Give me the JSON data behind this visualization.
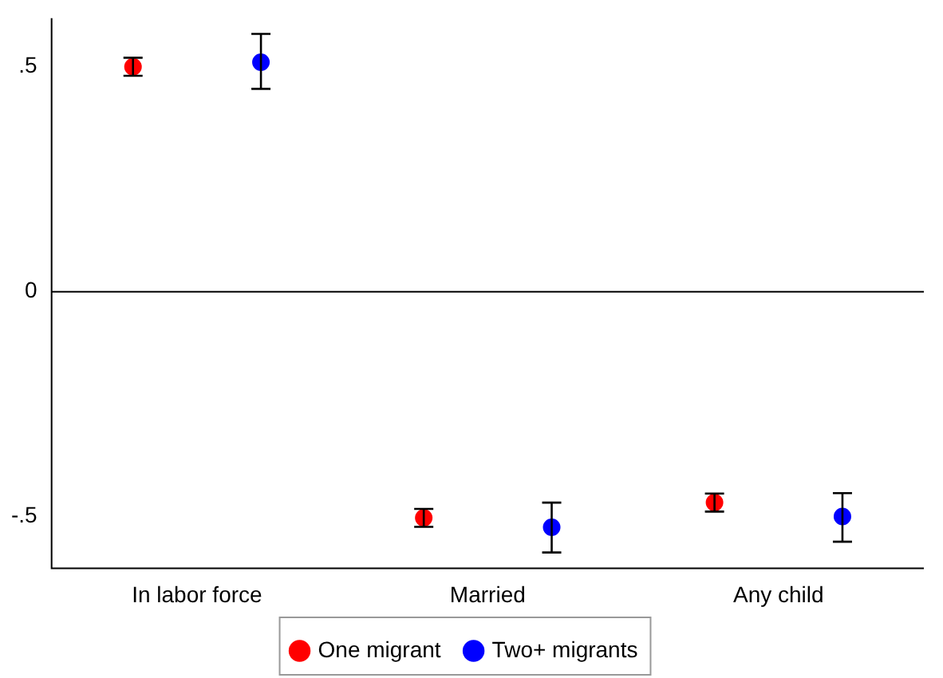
{
  "chart_data": {
    "type": "scatter",
    "categories": [
      "In labor force",
      "Married",
      "Any child"
    ],
    "series": [
      {
        "name": "One migrant",
        "color": "#ff0000",
        "x": [
          "In labor force",
          "Married",
          "Any child"
        ],
        "values": [
          0.5,
          -0.503,
          -0.469
        ],
        "errors": [
          [
            0.48,
            0.52
          ],
          [
            -0.523,
            -0.483
          ],
          [
            -0.489,
            -0.449
          ]
        ]
      },
      {
        "name": "Two+ migrants",
        "color": "#0000ff",
        "x": [
          "In labor force",
          "Married",
          "Any child"
        ],
        "values": [
          0.51,
          -0.524,
          -0.5
        ],
        "errors": [
          [
            0.451,
            0.573
          ],
          [
            -0.58,
            -0.469
          ],
          [
            -0.556,
            -0.448
          ]
        ]
      }
    ],
    "ylim": [
      -0.615,
      0.608
    ],
    "yticks": [
      {
        "value": -0.5,
        "label": "-.5"
      },
      {
        "value": 0,
        "label": "0"
      },
      {
        "value": 0.5,
        "label": ".5"
      }
    ],
    "ref_lines": [
      {
        "axis": "y",
        "value": 0,
        "color": "#000000"
      }
    ],
    "grid": false,
    "legend": "bottom",
    "marker": "circle"
  }
}
